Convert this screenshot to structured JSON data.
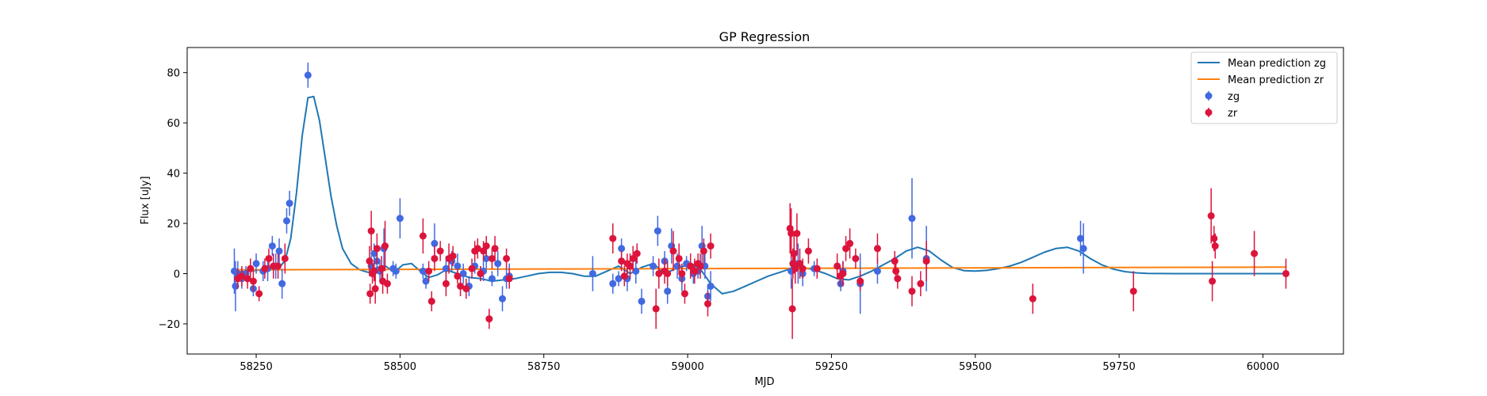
{
  "chart_data": {
    "type": "scatter",
    "title": "GP Regression",
    "xlabel": "MJD",
    "ylabel": "Flux [uJy]",
    "xlim": [
      58130,
      60140
    ],
    "ylim": [
      -32,
      90
    ],
    "xticks": [
      58250,
      58500,
      58750,
      59000,
      59250,
      59500,
      59750,
      60000
    ],
    "yticks": [
      -20,
      0,
      20,
      40,
      60,
      80
    ],
    "grid": false,
    "legend": "upper-right",
    "lines": [
      {
        "name": "Mean prediction zg",
        "color": "#1f77b4",
        "x": [
          58210,
          58240,
          58270,
          58290,
          58300,
          58310,
          58320,
          58330,
          58340,
          58350,
          58360,
          58370,
          58380,
          58390,
          58400,
          58415,
          58430,
          58445,
          58460,
          58475,
          58490,
          58505,
          58520,
          58535,
          58550,
          58565,
          58580,
          58600,
          58620,
          58640,
          58660,
          58680,
          58700,
          58720,
          58740,
          58760,
          58780,
          58800,
          58820,
          58840,
          58860,
          58880,
          58900,
          58920,
          58940,
          58960,
          58980,
          59000,
          59020,
          59040,
          59060,
          59080,
          59100,
          59120,
          59140,
          59160,
          59180,
          59200,
          59220,
          59240,
          59260,
          59280,
          59300,
          59320,
          59340,
          59360,
          59380,
          59400,
          59420,
          59440,
          59460,
          59480,
          59500,
          59520,
          59540,
          59560,
          59580,
          59600,
          59620,
          59640,
          59660,
          59680,
          59700,
          59720,
          59740,
          59760,
          59780,
          59800,
          59850,
          59900,
          59950,
          60000,
          60040
        ],
        "y": [
          0.5,
          1.0,
          1.8,
          2.5,
          5.0,
          14.0,
          32.0,
          55.0,
          70.0,
          70.5,
          61.0,
          46.0,
          31.0,
          19.0,
          10.0,
          4.0,
          1.5,
          0.5,
          2.5,
          3.0,
          0.5,
          3.5,
          4.0,
          1.0,
          -1.5,
          -0.5,
          1.5,
          0.0,
          -1.5,
          -2.0,
          -3.0,
          -2.5,
          -2.0,
          -1.0,
          0.0,
          0.5,
          0.5,
          0.0,
          -1.0,
          -1.0,
          1.0,
          3.0,
          0.0,
          2.5,
          4.0,
          0.0,
          2.0,
          3.5,
          2.5,
          -4.0,
          -8.0,
          -7.0,
          -5.0,
          -3.0,
          -1.0,
          0.5,
          2.0,
          2.5,
          1.5,
          0.0,
          -2.0,
          -2.5,
          -1.0,
          1.0,
          3.5,
          6.0,
          9.0,
          10.5,
          9.0,
          5.5,
          2.5,
          1.2,
          1.0,
          1.3,
          2.0,
          3.0,
          4.5,
          6.5,
          8.5,
          10.0,
          10.5,
          9.0,
          6.0,
          3.5,
          1.8,
          0.8,
          0.3,
          0.1,
          0.0,
          0.0,
          0.0,
          0.0,
          0.0
        ]
      },
      {
        "name": "Mean prediction zr",
        "color": "#ff7f0e",
        "x": [
          58210,
          60040
        ],
        "y": [
          1.5,
          2.6
        ]
      }
    ],
    "series": [
      {
        "name": "zg",
        "color": "#4169e1",
        "points": [
          [
            58212,
            1,
            9
          ],
          [
            58214,
            -5,
            10
          ],
          [
            58218,
            0,
            5
          ],
          [
            58225,
            -2,
            4
          ],
          [
            58232,
            0,
            3
          ],
          [
            58245,
            -6,
            3
          ],
          [
            58250,
            4,
            4
          ],
          [
            58262,
            1,
            4
          ],
          [
            58270,
            2,
            5
          ],
          [
            58278,
            11,
            4
          ],
          [
            58284,
            3,
            5
          ],
          [
            58290,
            9,
            5
          ],
          [
            58295,
            -4,
            6
          ],
          [
            58303,
            21,
            5
          ],
          [
            58308,
            28,
            5
          ],
          [
            58340,
            79,
            5
          ],
          [
            58450,
            3,
            4
          ],
          [
            58455,
            8,
            4
          ],
          [
            58460,
            5,
            5
          ],
          [
            58465,
            1,
            4
          ],
          [
            58472,
            10,
            8
          ],
          [
            58488,
            2,
            3
          ],
          [
            58493,
            1,
            3
          ],
          [
            58500,
            22,
            8
          ],
          [
            58540,
            1,
            3
          ],
          [
            58545,
            -3,
            3
          ],
          [
            58560,
            12,
            8
          ],
          [
            58580,
            2,
            5
          ],
          [
            58590,
            5,
            4
          ],
          [
            58600,
            3,
            5
          ],
          [
            58610,
            0,
            4
          ],
          [
            58620,
            -5,
            4
          ],
          [
            58630,
            3,
            3
          ],
          [
            58640,
            0,
            3
          ],
          [
            58645,
            1,
            4
          ],
          [
            58650,
            6,
            4
          ],
          [
            58660,
            -2,
            3
          ],
          [
            58670,
            4,
            5
          ],
          [
            58678,
            -10,
            5
          ],
          [
            58685,
            -2,
            4
          ],
          [
            58690,
            -1,
            5
          ],
          [
            58835,
            0,
            7
          ],
          [
            58870,
            -4,
            4
          ],
          [
            58880,
            -2,
            3
          ],
          [
            58885,
            10,
            4
          ],
          [
            58895,
            -2,
            5
          ],
          [
            58910,
            1,
            5
          ],
          [
            58920,
            -11,
            5
          ],
          [
            58940,
            3,
            4
          ],
          [
            58948,
            17,
            6
          ],
          [
            58960,
            5,
            4
          ],
          [
            58965,
            -7,
            5
          ],
          [
            58972,
            11,
            7
          ],
          [
            58982,
            3,
            5
          ],
          [
            58990,
            -2,
            5
          ],
          [
            58998,
            4,
            3
          ],
          [
            59010,
            0,
            4
          ],
          [
            59018,
            1,
            3
          ],
          [
            59025,
            11,
            8
          ],
          [
            59030,
            3,
            5
          ],
          [
            59035,
            -9,
            4
          ],
          [
            59040,
            -5,
            6
          ],
          [
            59180,
            1,
            7
          ],
          [
            59192,
            4,
            8
          ],
          [
            59200,
            0,
            5
          ],
          [
            59220,
            2,
            3
          ],
          [
            59266,
            -4,
            3
          ],
          [
            59270,
            1,
            4
          ],
          [
            59300,
            -4,
            12
          ],
          [
            59330,
            1,
            5
          ],
          [
            59390,
            22,
            16
          ],
          [
            59415,
            6,
            13
          ],
          [
            59683,
            14,
            7
          ],
          [
            59688,
            10,
            10
          ]
        ]
      },
      {
        "name": "zr",
        "color": "#dc143c",
        "points": [
          [
            58218,
            -2,
            4
          ],
          [
            58225,
            -1,
            4
          ],
          [
            58235,
            -2,
            4
          ],
          [
            58240,
            2,
            4
          ],
          [
            58245,
            -3,
            4
          ],
          [
            58255,
            -8,
            3
          ],
          [
            58265,
            2,
            4
          ],
          [
            58272,
            6,
            4
          ],
          [
            58280,
            3,
            5
          ],
          [
            58288,
            3,
            5
          ],
          [
            58300,
            6,
            6
          ],
          [
            58447,
            5,
            6
          ],
          [
            58448,
            -8,
            4
          ],
          [
            58450,
            17,
            8
          ],
          [
            58452,
            0,
            4
          ],
          [
            58455,
            1,
            4
          ],
          [
            58457,
            -6,
            6
          ],
          [
            58460,
            10,
            6
          ],
          [
            58468,
            2,
            5
          ],
          [
            58470,
            -3,
            5
          ],
          [
            58474,
            11,
            10
          ],
          [
            58478,
            -4,
            4
          ],
          [
            58540,
            15,
            7
          ],
          [
            58550,
            1,
            4
          ],
          [
            58555,
            -11,
            4
          ],
          [
            58560,
            6,
            5
          ],
          [
            58570,
            9,
            4
          ],
          [
            58580,
            -4,
            5
          ],
          [
            58585,
            6,
            6
          ],
          [
            58592,
            7,
            4
          ],
          [
            58600,
            -1,
            3
          ],
          [
            58605,
            -5,
            4
          ],
          [
            58615,
            -6,
            4
          ],
          [
            58625,
            2,
            4
          ],
          [
            58630,
            9,
            4
          ],
          [
            58635,
            10,
            4
          ],
          [
            58640,
            0,
            3
          ],
          [
            58645,
            9,
            4
          ],
          [
            58650,
            11,
            4
          ],
          [
            58655,
            -18,
            4
          ],
          [
            58660,
            6,
            4
          ],
          [
            58665,
            10,
            5
          ],
          [
            58685,
            6,
            4
          ],
          [
            58690,
            -2,
            4
          ],
          [
            58870,
            14,
            6
          ],
          [
            58885,
            5,
            4
          ],
          [
            58890,
            -1,
            4
          ],
          [
            58895,
            4,
            4
          ],
          [
            58900,
            3,
            5
          ],
          [
            58905,
            6,
            5
          ],
          [
            58912,
            8,
            4
          ],
          [
            58945,
            -14,
            8
          ],
          [
            58950,
            0,
            6
          ],
          [
            58960,
            1,
            5
          ],
          [
            58965,
            0,
            5
          ],
          [
            58975,
            9,
            8
          ],
          [
            58985,
            6,
            6
          ],
          [
            58990,
            0,
            4
          ],
          [
            58995,
            -8,
            4
          ],
          [
            59005,
            3,
            5
          ],
          [
            59012,
            1,
            5
          ],
          [
            59018,
            4,
            4
          ],
          [
            59022,
            3,
            5
          ],
          [
            59028,
            9,
            5
          ],
          [
            59035,
            -12,
            5
          ],
          [
            59040,
            11,
            5
          ],
          [
            59178,
            18,
            10
          ],
          [
            59180,
            16,
            10
          ],
          [
            59182,
            -14,
            12
          ],
          [
            59183,
            4,
            6
          ],
          [
            59185,
            8,
            8
          ],
          [
            59187,
            2,
            6
          ],
          [
            59190,
            16,
            8
          ],
          [
            59195,
            4,
            6
          ],
          [
            59200,
            2,
            4
          ],
          [
            59210,
            9,
            5
          ],
          [
            59225,
            2,
            4
          ],
          [
            59260,
            3,
            5
          ],
          [
            59265,
            -1,
            4
          ],
          [
            59270,
            0,
            5
          ],
          [
            59275,
            10,
            5
          ],
          [
            59282,
            12,
            6
          ],
          [
            59292,
            6,
            4
          ],
          [
            59300,
            -3,
            4
          ],
          [
            59330,
            10,
            6
          ],
          [
            59360,
            5,
            4
          ],
          [
            59362,
            1,
            4
          ],
          [
            59365,
            -2,
            4
          ],
          [
            59390,
            -7,
            6
          ],
          [
            59405,
            -4,
            5
          ],
          [
            59415,
            5,
            8
          ],
          [
            59600,
            -10,
            6
          ],
          [
            59775,
            -7,
            8
          ],
          [
            59910,
            23,
            11
          ],
          [
            59912,
            -3,
            8
          ],
          [
            59915,
            14,
            5
          ],
          [
            59917,
            11,
            5
          ],
          [
            59985,
            8,
            9
          ],
          [
            60040,
            0,
            6
          ]
        ]
      }
    ]
  }
}
